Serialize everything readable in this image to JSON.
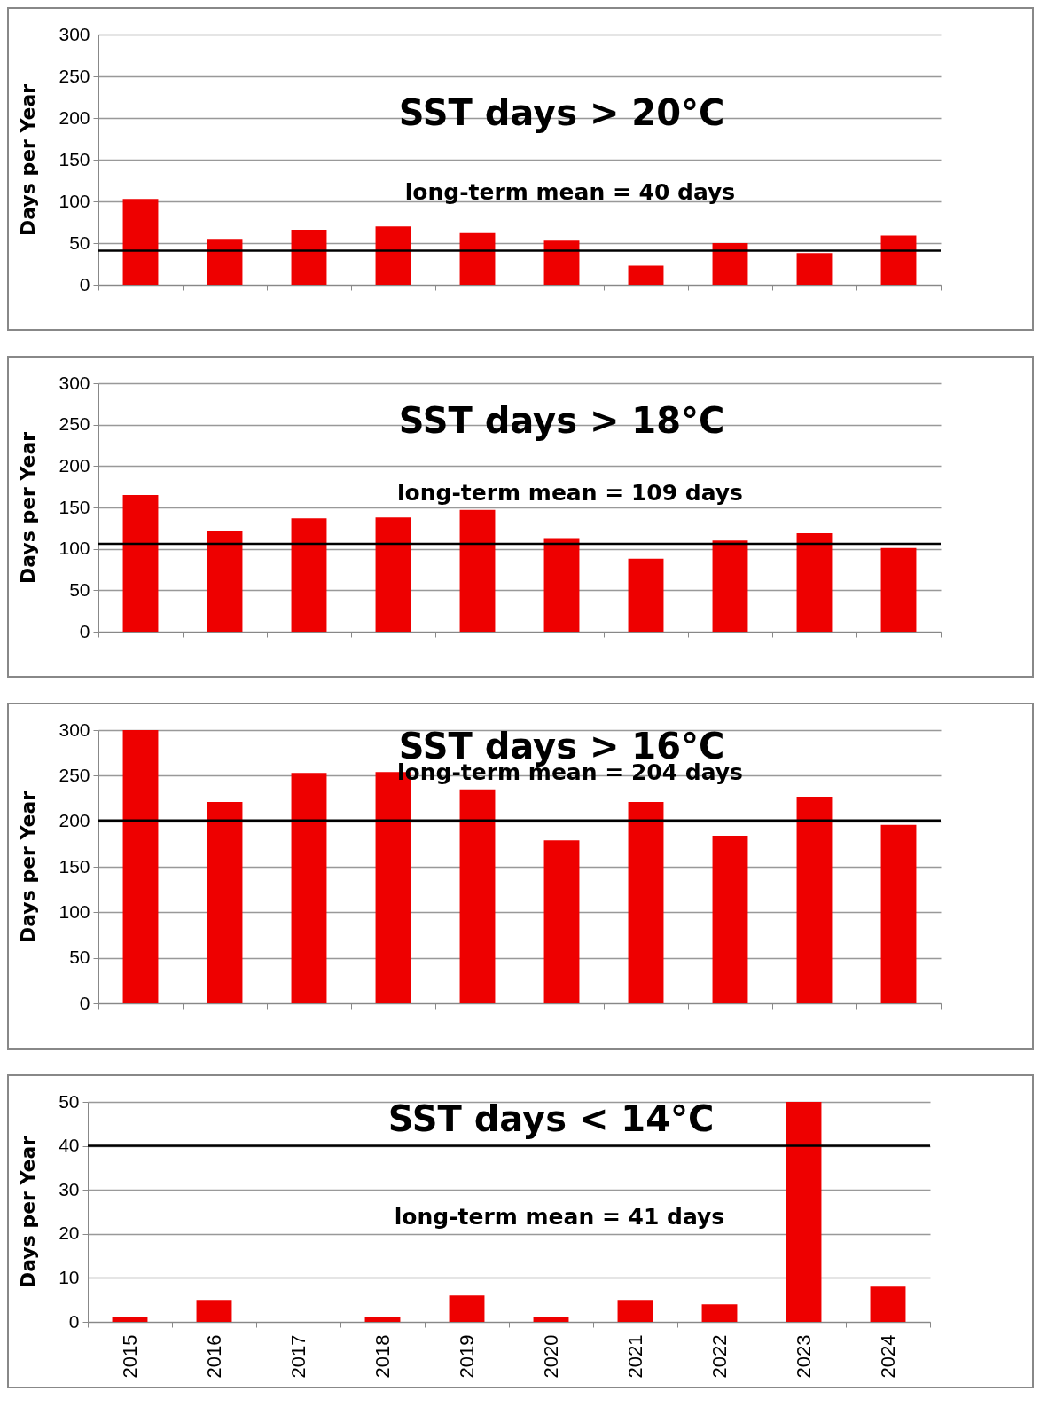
{
  "chart_data": [
    {
      "type": "bar",
      "title": "SST days > 20°C",
      "annotations": [
        "long-term mean = 40 days"
      ],
      "ylabel": "Days per Year",
      "categories": [
        "2015",
        "2016",
        "2017",
        "2018",
        "2019",
        "2020",
        "2021",
        "2022",
        "2023",
        "2024"
      ],
      "values": [
        103,
        55,
        66,
        70,
        62,
        53,
        23,
        50,
        38,
        59
      ],
      "color": "#ee0000",
      "ylim": [
        0,
        300
      ],
      "yticks": [
        0,
        50,
        100,
        150,
        200,
        250,
        300
      ],
      "grid": "y",
      "tick_labels": "y",
      "ref_lines": [
        {
          "axis": "y",
          "value": 41,
          "color": "#000000"
        }
      ]
    },
    {
      "type": "bar",
      "title": "SST days > 18°C",
      "annotations": [
        "long-term mean = 109 days"
      ],
      "ylabel": "Days per Year",
      "categories": [
        "2015",
        "2016",
        "2017",
        "2018",
        "2019",
        "2020",
        "2021",
        "2022",
        "2023",
        "2024"
      ],
      "values": [
        165,
        122,
        137,
        138,
        147,
        113,
        88,
        110,
        119,
        101
      ],
      "color": "#ee0000",
      "ylim": [
        0,
        300
      ],
      "yticks": [
        0,
        50,
        100,
        150,
        200,
        250,
        300
      ],
      "grid": "y",
      "tick_labels": "y",
      "ref_lines": [
        {
          "axis": "y",
          "value": 106,
          "color": "#000000"
        }
      ]
    },
    {
      "type": "bar",
      "title": "SST days > 16°C",
      "annotations": [
        "long-term mean = 204 days"
      ],
      "ylabel": "Days per Year",
      "categories": [
        "2015",
        "2016",
        "2017",
        "2018",
        "2019",
        "2020",
        "2021",
        "2022",
        "2023",
        "2024"
      ],
      "values": [
        300,
        221,
        253,
        254,
        235,
        179,
        221,
        184,
        227,
        196
      ],
      "color": "#ee0000",
      "ylim": [
        0,
        300
      ],
      "yticks": [
        0,
        50,
        100,
        150,
        200,
        250,
        300
      ],
      "grid": "y",
      "tick_labels": "y",
      "ref_lines": [
        {
          "axis": "y",
          "value": 201,
          "color": "#000000"
        }
      ]
    },
    {
      "type": "bar",
      "title": "SST days < 14°C",
      "annotations": [
        "long-term mean = 41 days"
      ],
      "ylabel": "Days per Year",
      "categories": [
        "2015",
        "2016",
        "2017",
        "2018",
        "2019",
        "2020",
        "2021",
        "2022",
        "2023",
        "2024"
      ],
      "values": [
        1,
        5,
        0,
        1,
        6,
        1,
        5,
        4,
        50,
        8
      ],
      "color": "#ee0000",
      "ylim": [
        0,
        50
      ],
      "yticks": [
        0,
        10,
        20,
        30,
        40,
        50
      ],
      "grid": "y",
      "ref_lines": [
        {
          "axis": "y",
          "value": 40,
          "color": "#000000"
        }
      ]
    }
  ]
}
